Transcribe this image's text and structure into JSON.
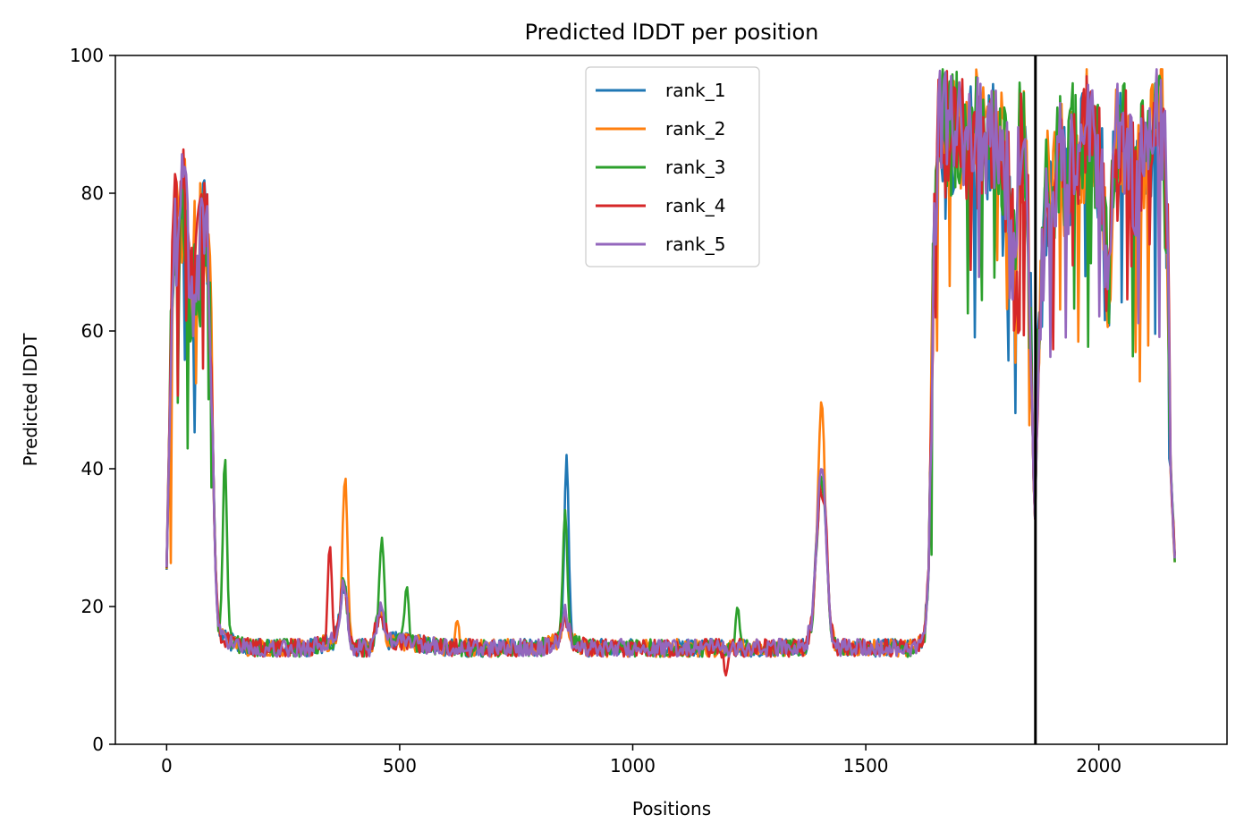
{
  "chart_data": {
    "type": "line",
    "title": "Predicted lDDT per position",
    "xlabel": "Positions",
    "ylabel": "Predicted lDDT",
    "xlim": [
      -110,
      2275
    ],
    "ylim": [
      0,
      100
    ],
    "xticks": [
      0,
      500,
      1000,
      1500,
      2000
    ],
    "yticks": [
      0,
      20,
      40,
      60,
      80,
      100
    ],
    "grid": false,
    "legend_position": "top-center",
    "vertical_line_x": 1864,
    "vertical_line_color": "#000000",
    "series_count": 5,
    "x_max": 2164,
    "profile": [
      [
        0,
        26
      ],
      [
        5,
        42
      ],
      [
        10,
        62
      ],
      [
        15,
        72
      ],
      [
        20,
        76
      ],
      [
        25,
        70
      ],
      [
        30,
        74
      ],
      [
        35,
        80
      ],
      [
        40,
        78
      ],
      [
        45,
        72
      ],
      [
        50,
        68
      ],
      [
        55,
        64
      ],
      [
        60,
        70
      ],
      [
        65,
        68
      ],
      [
        70,
        72
      ],
      [
        75,
        74
      ],
      [
        80,
        78
      ],
      [
        85,
        76
      ],
      [
        90,
        72
      ],
      [
        95,
        62
      ],
      [
        100,
        40
      ],
      [
        105,
        25
      ],
      [
        110,
        18
      ],
      [
        115,
        16
      ],
      [
        130,
        15
      ],
      [
        180,
        14
      ],
      [
        300,
        14
      ],
      [
        360,
        15
      ],
      [
        370,
        18
      ],
      [
        378,
        24
      ],
      [
        385,
        22
      ],
      [
        392,
        16
      ],
      [
        400,
        14
      ],
      [
        440,
        14
      ],
      [
        452,
        18
      ],
      [
        458,
        20
      ],
      [
        465,
        18
      ],
      [
        475,
        15
      ],
      [
        500,
        15
      ],
      [
        600,
        14
      ],
      [
        700,
        14
      ],
      [
        800,
        14
      ],
      [
        840,
        15
      ],
      [
        848,
        17
      ],
      [
        855,
        19
      ],
      [
        862,
        17
      ],
      [
        870,
        15
      ],
      [
        900,
        14
      ],
      [
        1000,
        14
      ],
      [
        1100,
        14
      ],
      [
        1200,
        14
      ],
      [
        1300,
        14
      ],
      [
        1370,
        14
      ],
      [
        1385,
        18
      ],
      [
        1395,
        30
      ],
      [
        1402,
        38
      ],
      [
        1410,
        37
      ],
      [
        1418,
        26
      ],
      [
        1425,
        17
      ],
      [
        1435,
        14
      ],
      [
        1500,
        14
      ],
      [
        1600,
        14
      ],
      [
        1625,
        15
      ],
      [
        1635,
        25
      ],
      [
        1645,
        70
      ],
      [
        1655,
        88
      ],
      [
        1665,
        90
      ],
      [
        1680,
        88
      ],
      [
        1700,
        90
      ],
      [
        1720,
        86
      ],
      [
        1740,
        90
      ],
      [
        1760,
        86
      ],
      [
        1780,
        88
      ],
      [
        1800,
        84
      ],
      [
        1810,
        78
      ],
      [
        1820,
        68
      ],
      [
        1830,
        88
      ],
      [
        1840,
        86
      ],
      [
        1848,
        78
      ],
      [
        1855,
        58
      ],
      [
        1862,
        30
      ],
      [
        1866,
        42
      ],
      [
        1872,
        62
      ],
      [
        1880,
        72
      ],
      [
        1890,
        82
      ],
      [
        1900,
        78
      ],
      [
        1915,
        86
      ],
      [
        1930,
        80
      ],
      [
        1945,
        88
      ],
      [
        1960,
        84
      ],
      [
        1975,
        90
      ],
      [
        1990,
        86
      ],
      [
        2005,
        84
      ],
      [
        2020,
        66
      ],
      [
        2035,
        86
      ],
      [
        2050,
        90
      ],
      [
        2065,
        84
      ],
      [
        2080,
        80
      ],
      [
        2095,
        86
      ],
      [
        2110,
        88
      ],
      [
        2125,
        92
      ],
      [
        2140,
        90
      ],
      [
        2148,
        70
      ],
      [
        2154,
        40
      ],
      [
        2158,
        34
      ],
      [
        2164,
        26
      ]
    ],
    "spikes": [
      [
        {
          "x": 858,
          "y": 42
        }
      ],
      [
        {
          "x": 383,
          "y": 39
        },
        {
          "x": 1405,
          "y": 50
        },
        {
          "x": 623,
          "y": 18
        }
      ],
      [
        {
          "x": 125,
          "y": 42
        },
        {
          "x": 462,
          "y": 30
        },
        {
          "x": 515,
          "y": 23
        },
        {
          "x": 855,
          "y": 34
        },
        {
          "x": 1225,
          "y": 20
        }
      ],
      [
        {
          "x": 350,
          "y": 29
        },
        {
          "x": 1410,
          "y": 35
        },
        {
          "x": 1200,
          "y": 10
        }
      ],
      [
        {
          "x": 40,
          "y": 84
        },
        {
          "x": 1405,
          "y": 40
        }
      ]
    ],
    "series": [
      {
        "name": "rank_1",
        "color": "#1f77b4"
      },
      {
        "name": "rank_2",
        "color": "#ff7f0e"
      },
      {
        "name": "rank_3",
        "color": "#2ca02c"
      },
      {
        "name": "rank_4",
        "color": "#d62728"
      },
      {
        "name": "rank_5",
        "color": "#9467bd"
      }
    ]
  }
}
